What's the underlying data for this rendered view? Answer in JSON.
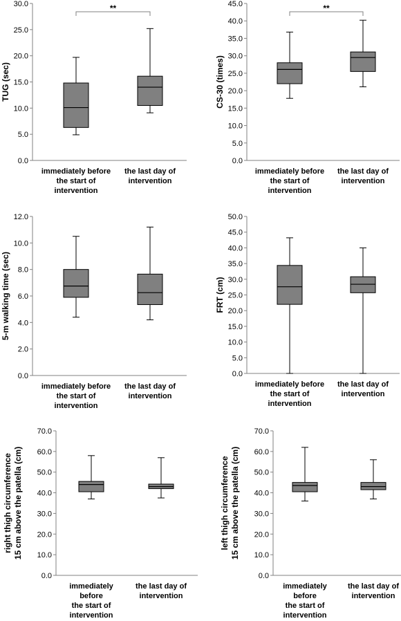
{
  "chart_data": [
    {
      "type": "box",
      "ylabel": "TUG (sec)",
      "ylim": [
        0,
        30
      ],
      "yticks": [
        "0.0",
        "5.0",
        "10.0",
        "15.0",
        "20.0",
        "25.0",
        "30.0"
      ],
      "categories": [
        [
          "immediately before",
          "the start of",
          "intervention"
        ],
        [
          "the last day of",
          "intervention"
        ]
      ],
      "boxes": [
        {
          "min": 4.9,
          "q1": 6.3,
          "median": 10.1,
          "q3": 14.8,
          "max": 19.7
        },
        {
          "min": 9.1,
          "q1": 10.5,
          "median": 14.0,
          "q3": 16.1,
          "max": 25.2
        }
      ],
      "significance": "**"
    },
    {
      "type": "box",
      "ylabel": "CS-30  (times)",
      "ylim": [
        0,
        45
      ],
      "yticks": [
        "0.0",
        "5.0",
        "10.0",
        "15.0",
        "20.0",
        "25.0",
        "30.0",
        "35.0",
        "40.0",
        "45.0"
      ],
      "categories": [
        [
          "immediately before",
          "the start of",
          "intervention"
        ],
        [
          "the last day of",
          "intervention"
        ]
      ],
      "boxes": [
        {
          "min": 17.8,
          "q1": 22.0,
          "median": 26.1,
          "q3": 28.0,
          "max": 36.8
        },
        {
          "min": 21.1,
          "q1": 25.5,
          "median": 29.5,
          "q3": 31.1,
          "max": 40.2
        }
      ],
      "significance": "**"
    },
    {
      "type": "box",
      "ylabel": "5-m walking time (sec)",
      "ylim": [
        0,
        12
      ],
      "yticks": [
        "0.0",
        "2.0",
        "4.0",
        "6.0",
        "8.0",
        "10.0",
        "12.0"
      ],
      "categories": [
        [
          "immediately before",
          "the start of",
          "intervention"
        ],
        [
          "the last day of",
          "intervention"
        ]
      ],
      "boxes": [
        {
          "min": 4.4,
          "q1": 5.9,
          "median": 6.75,
          "q3": 8.0,
          "max": 10.5
        },
        {
          "min": 4.2,
          "q1": 5.35,
          "median": 6.25,
          "q3": 7.65,
          "max": 11.2
        }
      ],
      "significance": ""
    },
    {
      "type": "box",
      "ylabel": "FRT (cm)",
      "ylim": [
        0,
        50
      ],
      "yticks": [
        "0.0",
        "5.0",
        "10.0",
        "15.0",
        "20.0",
        "25.0",
        "30.0",
        "35.0",
        "40.0",
        "45.0",
        "50.0"
      ],
      "categories": [
        [
          "immediately before",
          "the start of",
          "intervention"
        ],
        [
          "the last day of",
          "intervention"
        ]
      ],
      "boxes": [
        {
          "min": 0.0,
          "q1": 22.0,
          "median": 27.6,
          "q3": 34.4,
          "max": 43.2
        },
        {
          "min": 0.0,
          "q1": 25.7,
          "median": 28.4,
          "q3": 30.8,
          "max": 40.0
        }
      ],
      "significance": ""
    },
    {
      "type": "box",
      "ylabel": [
        "right thigh circumference",
        "15 cm above the patella (cm)"
      ],
      "ylim": [
        0,
        70
      ],
      "yticks": [
        "0.0",
        "10.0",
        "20.0",
        "30.0",
        "40.0",
        "50.0",
        "60.0",
        "70.0"
      ],
      "categories": [
        [
          "immediately",
          "before",
          "the start of",
          "intervention"
        ],
        [
          "the last day of",
          "intervention"
        ]
      ],
      "boxes": [
        {
          "min": 37.0,
          "q1": 40.5,
          "median": 44.0,
          "q3": 45.5,
          "max": 58.0
        },
        {
          "min": 37.5,
          "q1": 42.0,
          "median": 43.0,
          "q3": 44.2,
          "max": 57.0
        }
      ],
      "significance": ""
    },
    {
      "type": "box",
      "ylabel": [
        "left thigh circumference",
        "15 cm above the patella (cm)"
      ],
      "ylim": [
        0,
        70
      ],
      "yticks": [
        "0.0",
        "10.0",
        "20.0",
        "30.0",
        "40.0",
        "50.0",
        "60.0",
        "70.0"
      ],
      "categories": [
        [
          "immediately",
          "before",
          "the start of",
          "intervention"
        ],
        [
          "the last day of",
          "intervention"
        ]
      ],
      "boxes": [
        {
          "min": 36.0,
          "q1": 40.5,
          "median": 43.5,
          "q3": 45.0,
          "max": 62.0
        },
        {
          "min": 37.0,
          "q1": 41.5,
          "median": 43.0,
          "q3": 45.0,
          "max": 56.0
        }
      ],
      "significance": ""
    }
  ],
  "colors": {
    "box_fill": "#808080",
    "line": "#000000",
    "axis": "#808080"
  }
}
